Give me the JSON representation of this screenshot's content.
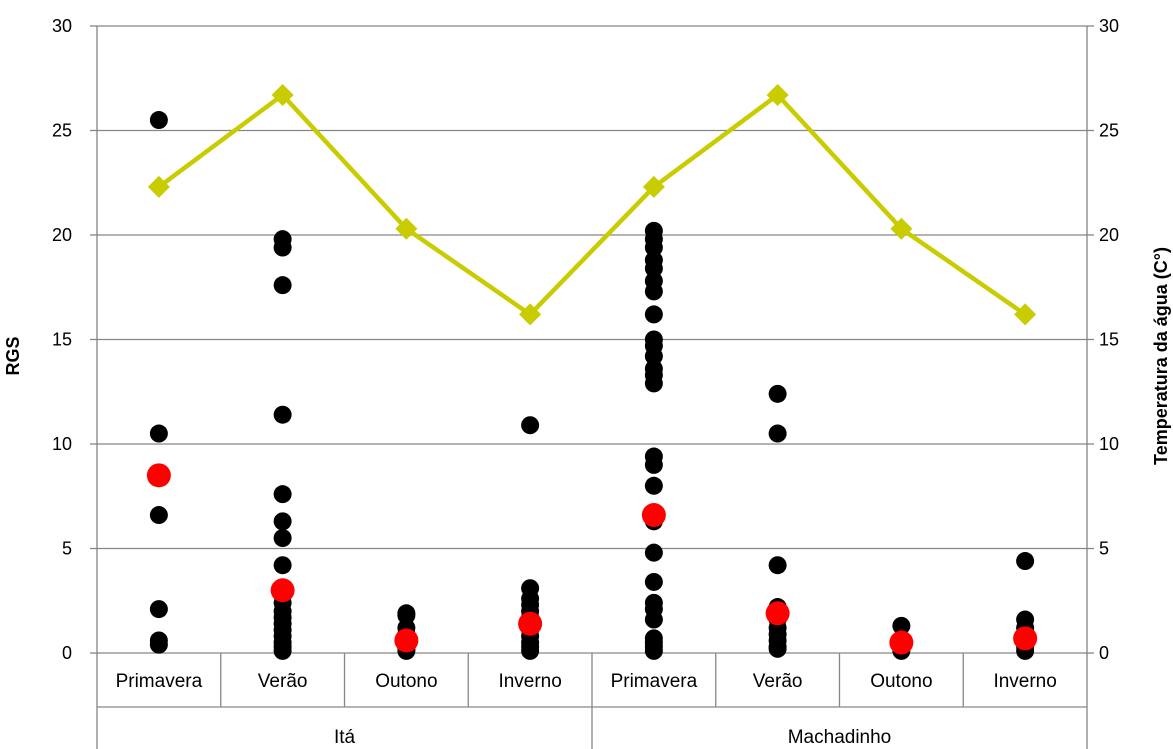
{
  "chart_data": {
    "type": "scatter",
    "title": "",
    "ylabel_left": "RGS",
    "ylabel_right": "Temperatura da água (C°)",
    "ylim": [
      0,
      30
    ],
    "yticks": [
      0,
      5,
      10,
      15,
      20,
      25,
      30
    ],
    "grid": true,
    "legend": "none",
    "groups": [
      {
        "name": "Itá",
        "categories": [
          "Primavera",
          "Verão",
          "Outono",
          "Inverno"
        ]
      },
      {
        "name": "Machadinho",
        "categories": [
          "Primavera",
          "Verão",
          "Outono",
          "Inverno"
        ]
      }
    ],
    "colors": {
      "individual": "#000000",
      "mean": "#ff0000",
      "temperature": "#c8cc00",
      "grid": "#868686"
    },
    "series": [
      {
        "name": "",
        "role": "individual",
        "axis": "left",
        "values": [
          [
            25.5,
            10.5,
            6.6,
            2.1,
            0.6,
            0.4
          ],
          [
            19.8,
            19.4,
            17.6,
            11.4,
            7.6,
            6.3,
            5.5,
            4.2,
            2.4,
            2.0,
            1.7,
            1.4,
            1.1,
            0.8,
            0.5,
            0.3,
            0.1
          ],
          [
            1.9,
            1.8,
            1.2,
            0.9,
            0.7,
            0.4,
            0.2,
            0.1
          ],
          [
            10.9,
            3.1,
            2.6,
            2.3,
            2.0,
            1.7,
            1.4,
            1.1,
            0.8,
            0.5,
            0.3,
            0.1
          ],
          [
            20.2,
            19.8,
            19.4,
            18.8,
            18.4,
            17.8,
            17.3,
            16.2,
            15.0,
            14.7,
            14.2,
            13.6,
            13.3,
            12.9,
            9.4,
            9.0,
            8.0,
            6.6,
            6.3,
            4.8,
            3.4,
            2.4,
            2.1,
            1.6,
            0.7,
            0.5,
            0.3,
            0.1
          ],
          [
            12.4,
            10.5,
            4.2,
            2.2,
            1.9,
            1.6,
            1.2,
            0.9,
            0.6,
            0.3,
            0.2
          ],
          [
            1.3,
            0.5,
            0.1
          ],
          [
            4.4,
            1.6,
            1.2,
            0.9,
            0.6,
            0.3,
            0.1
          ]
        ]
      },
      {
        "name": "",
        "role": "mean",
        "axis": "left",
        "values": [
          8.5,
          3.0,
          0.6,
          1.4,
          6.6,
          1.9,
          0.5,
          0.7
        ]
      },
      {
        "name": "",
        "role": "temperature",
        "axis": "right",
        "values": [
          22.3,
          26.7,
          20.3,
          16.2,
          22.3,
          26.7,
          20.3,
          16.2
        ]
      }
    ]
  }
}
